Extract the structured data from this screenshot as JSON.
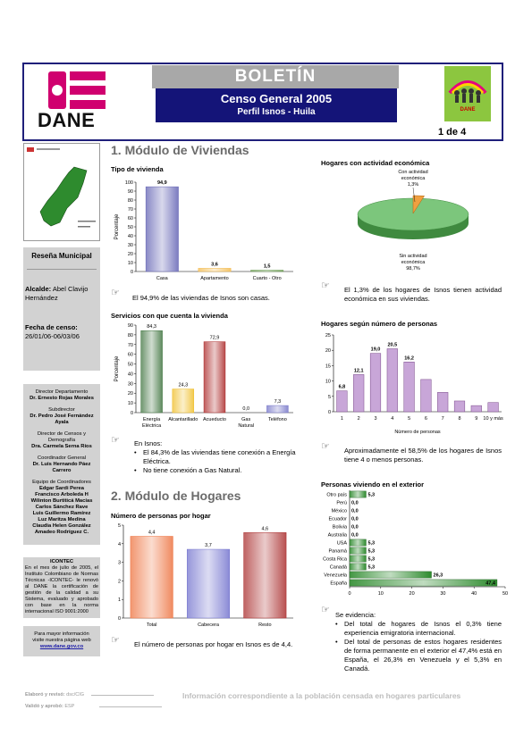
{
  "header": {
    "logo_text": "DANE",
    "bulletin_label": "BOLETÍN",
    "census_title": "Censo General 2005",
    "profile_title": "Perfil Isnos - Huila",
    "page_indicator": "1 de 4",
    "side_logo_caption": "DANE"
  },
  "sidebar": {
    "section_title": "Reseña Municipal",
    "mayor_label": "Alcalde:",
    "mayor_value": "Abel Clavijo Hernández",
    "census_date_label": "Fecha de censo:",
    "census_date_value": "26/01/06-06/03/06",
    "staff": [
      {
        "role": "Director Departamento",
        "name": "Dr. Ernesto Rojas Morales"
      },
      {
        "role": "Subdirector",
        "name": "Dr. Pedro José Fernández Ayala"
      },
      {
        "role": "Director de Censos y Demografía",
        "name": "Dra. Carmela Serna Ríos"
      },
      {
        "role": "Coordinador General",
        "name": "Dr. Luis Hernando Páez Carrero"
      }
    ],
    "team_role": "Equipo de Coordinadores",
    "team_names": [
      "Edgar Sardi Perea",
      "Francisco Arboleda H",
      "Wilinton Burtiticá Macías",
      "Carlos Sánchez Rave",
      "Luis Guillermo Ramírez",
      "Luz Maritza Medina",
      "Claudia Helen González",
      "Amadeo Rodríguez C."
    ],
    "icontec_title": "ICONTEC",
    "icontec_text": "En el mes de julio de 2005, el Instituto Colombiano de Normas Técnicas -ICONTEC- le renovó al DANE la certificación de gestión de la calidad a su Sistema, evaluado y aprobado con base en la norma internacional ISO 9001:2000",
    "more_info_text": "Para mayor información visite nuestra página web",
    "website": "www.dane.gov.co"
  },
  "section_viviendas": {
    "title": "1. Módulo de Viviendas",
    "tipo_title": "Tipo de vivienda",
    "tipo_note": "El 94,9% de las viviendas de Isnos son casas.",
    "servicios_title": "Servicios con que cuenta la vivienda",
    "servicios_note_intro": "En Isnos:",
    "servicios_bullets": [
      "El 84,3% de las viviendas tiene conexión a Energía Eléctrica.",
      "No tiene conexión a Gas Natural."
    ]
  },
  "section_hogares": {
    "title": "2. Módulo de Hogares",
    "personas_title": "Número de personas por hogar",
    "personas_note": "El número de personas por hogar en Isnos es de 4,4."
  },
  "right_column": {
    "actividad_title": "Hogares con actividad económica",
    "actividad_note": "El 1,3% de los hogares de Isnos tienen actividad económica en sus viviendas.",
    "numero_title": "Hogares según número de personas",
    "numero_note": "Aproximadamente el 58,5% de los hogares de Isnos tiene 4 o menos personas.",
    "exterior_title": "Personas viviendo en el exterior",
    "exterior_note_intro": "Se evidencia:",
    "exterior_bullets": [
      "Del total de hogares de Isnos el 0,3% tiene experiencia emigratoria internacional.",
      "Del total de personas de estos hogares residentes de forma permanente en el exterior el 47,4% está en España, el 26,3% en Venezuela y el 5,3% en Canadá."
    ]
  },
  "footer": {
    "elaborated_label": "Elaboró y revisó:",
    "elaborated_value": "dsc/CIG",
    "validated_label": "Validó y aprobó:",
    "validated_value": "ESP",
    "disclaimer": "Información correspondiente a la población censada en hogares particulares"
  },
  "chart_data": [
    {
      "type": "bar",
      "title": "Tipo de vivienda",
      "ylabel": "Porcentaje",
      "ylim": [
        0,
        100
      ],
      "categories": [
        "Casa",
        "Apartamento",
        "Cuarto - Otro"
      ],
      "values": [
        94.9,
        3.6,
        1.5
      ],
      "labels": [
        "94,9",
        "3,6",
        "1,5"
      ],
      "colors": [
        "#7c7cc0",
        "#f4c56a",
        "#7fa86a"
      ],
      "yticks": [
        "0",
        "10",
        "20",
        "30",
        "40",
        "50",
        "60",
        "70",
        "80",
        "90",
        "100"
      ]
    },
    {
      "type": "pie",
      "title": "Hogares con actividad económica",
      "slices": [
        {
          "name": "Con actividad económica",
          "value": 1.3,
          "label": "1,3%"
        },
        {
          "name": "Sin actividad económica",
          "value": 98.7,
          "label": "98,7%"
        }
      ]
    },
    {
      "type": "bar",
      "title": "Servicios con que cuenta la vivienda",
      "ylabel": "Porcentaje",
      "ylim": [
        0,
        90
      ],
      "categories": [
        "Energía Eléctrica",
        "Alcantarillado",
        "Acueducto",
        "Gas Natural",
        "Teléfono"
      ],
      "values": [
        84.3,
        24.3,
        72.9,
        0.0,
        7.3
      ],
      "labels": [
        "84,3",
        "24,3",
        "72,9",
        "0,0",
        "7,3"
      ],
      "colors": [
        "#5e8a5e",
        "#f2c94c",
        "#b84a4a",
        "#9b9bd0",
        "#8a8ad0"
      ],
      "yticks": [
        "0",
        "10",
        "20",
        "30",
        "40",
        "50",
        "60",
        "70",
        "80",
        "90"
      ]
    },
    {
      "type": "bar",
      "title": "Hogares según número de personas",
      "xlabel": "Número de personas",
      "ylim": [
        0,
        25
      ],
      "categories": [
        "1",
        "2",
        "3",
        "4",
        "5",
        "6",
        "7",
        "8",
        "9",
        "10 y más"
      ],
      "values": [
        6.8,
        12.1,
        19.0,
        20.5,
        16.2,
        10.5,
        6.3,
        3.5,
        2.0,
        3.0
      ],
      "labels": [
        "6,8",
        "12,1",
        "19,0",
        "20,5",
        "16,2",
        "",
        "",
        "",
        "",
        ""
      ],
      "yticks": [
        "0",
        "5",
        "10",
        "15",
        "20",
        "25"
      ]
    },
    {
      "type": "bar",
      "title": "Número de personas por hogar",
      "ylim": [
        0,
        5
      ],
      "categories": [
        "Total",
        "Cabecera",
        "Resto"
      ],
      "values": [
        4.4,
        3.7,
        4.6
      ],
      "labels": [
        "4,4",
        "3,7",
        "4,6"
      ],
      "colors": [
        "#f08a60",
        "#8a8ad6",
        "#b85050"
      ],
      "yticks": [
        "0",
        "1",
        "2",
        "3",
        "4",
        "5"
      ]
    },
    {
      "type": "bar",
      "orientation": "horizontal",
      "title": "Personas viviendo en el exterior",
      "xlim": [
        0,
        50
      ],
      "categories": [
        "Otro país",
        "Perú",
        "México",
        "Ecuador",
        "Bolivia",
        "Australia",
        "USA",
        "Panamá",
        "Costa Rica",
        "Canadá",
        "Venezuela",
        "España"
      ],
      "values": [
        5.3,
        0.0,
        0.0,
        0.0,
        0.0,
        0.0,
        5.3,
        5.3,
        5.3,
        5.3,
        26.3,
        47.4
      ],
      "labels": [
        "5,3",
        "0,0",
        "0,0",
        "0,0",
        "0,0",
        "0,0",
        "5,3",
        "5,3",
        "5,3",
        "5,3",
        "26,3",
        "47,4"
      ],
      "xticks": [
        "0",
        "10",
        "20",
        "30",
        "40",
        "50"
      ]
    }
  ]
}
